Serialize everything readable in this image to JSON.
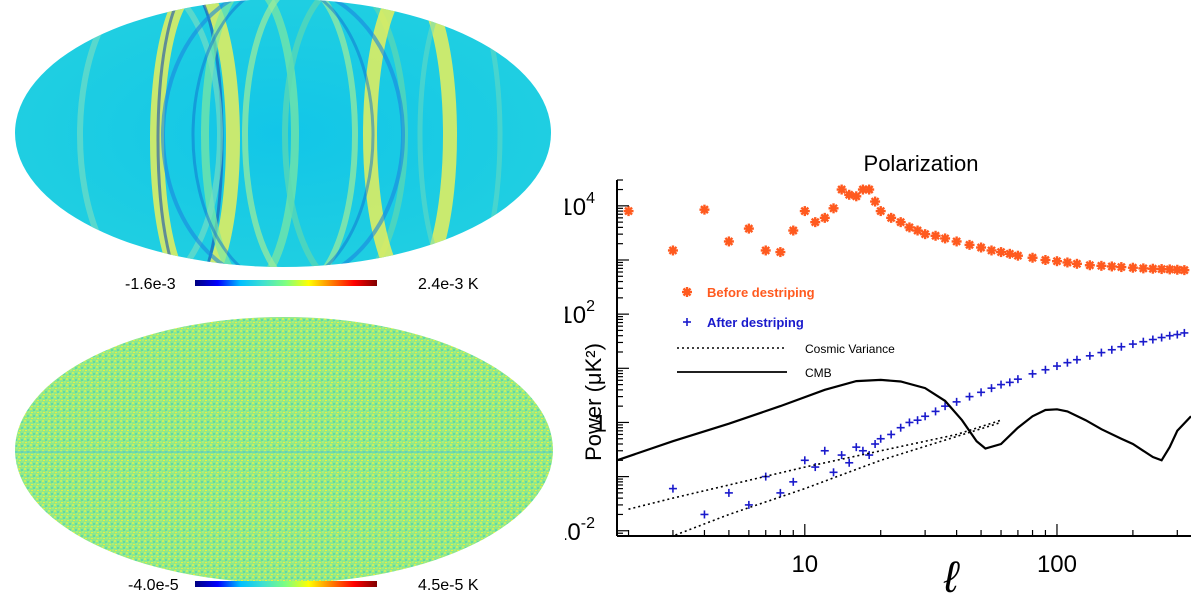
{
  "maps": [
    {
      "scale_min": "-1.6e-3",
      "scale_max": "2.4e-3 K"
    },
    {
      "scale_min": "-4.0e-5",
      "scale_max": "4.5e-5 K"
    }
  ],
  "colorbar_colors": [
    "#00007f",
    "#0000ff",
    "#00bfff",
    "#40e0d0",
    "#7fff7f",
    "#ffff00",
    "#ff7f00",
    "#ff0000",
    "#7f0000"
  ],
  "chart_data": {
    "type": "scatter",
    "title": "Polarization",
    "xlabel": "ℓ",
    "ylabel": "Power (μK²)",
    "xscale": "log",
    "yscale": "log",
    "xlim": [
      1.8,
      340
    ],
    "ylim": [
      0.008,
      30000
    ],
    "x_ticks": [
      {
        "value": 10,
        "label": "10"
      },
      {
        "value": 100,
        "label": "100"
      }
    ],
    "y_ticks": [
      {
        "value": 0.01,
        "base": "10",
        "exp": "-2"
      },
      {
        "value": 1,
        "base": "1",
        "exp": ""
      },
      {
        "value": 100,
        "base": "10",
        "exp": "2"
      },
      {
        "value": 10000,
        "base": "10",
        "exp": "4"
      }
    ],
    "legend_position": "left",
    "legend": [
      {
        "label": "Before destriping",
        "color": "#ff5a1f",
        "marker": "asterisk"
      },
      {
        "label": "After destriping",
        "color": "#1a1acc",
        "marker": "plus"
      },
      {
        "label": "Cosmic Variance",
        "color": "#000000",
        "marker": "dotted-line"
      },
      {
        "label": "CMB",
        "color": "#000000",
        "marker": "solid-line"
      }
    ],
    "series": [
      {
        "name": "Before destriping",
        "color": "#ff5a1f",
        "x": [
          2,
          3,
          4,
          5,
          6,
          7,
          8,
          9,
          10,
          11,
          12,
          13,
          14,
          15,
          16,
          17,
          18,
          19,
          20,
          22,
          24,
          26,
          28,
          30,
          33,
          36,
          40,
          45,
          50,
          55,
          60,
          65,
          70,
          80,
          90,
          100,
          110,
          120,
          135,
          150,
          165,
          180,
          200,
          220,
          240,
          260,
          280,
          300,
          320
        ],
        "y": [
          8000,
          1500,
          8500,
          2200,
          3800,
          1500,
          1400,
          3500,
          8000,
          5000,
          6000,
          9000,
          20000,
          16000,
          15000,
          20000,
          20000,
          12000,
          8000,
          6000,
          5000,
          4000,
          3500,
          3000,
          2800,
          2500,
          2200,
          1900,
          1700,
          1500,
          1400,
          1300,
          1200,
          1100,
          1000,
          950,
          900,
          850,
          800,
          780,
          760,
          740,
          720,
          700,
          690,
          680,
          670,
          660,
          650
        ]
      },
      {
        "name": "After destriping",
        "color": "#1a1acc",
        "x": [
          2,
          3,
          4,
          5,
          6,
          7,
          8,
          9,
          10,
          11,
          12,
          13,
          14,
          15,
          16,
          17,
          18,
          19,
          20,
          22,
          24,
          26,
          28,
          30,
          33,
          36,
          40,
          45,
          50,
          55,
          60,
          65,
          70,
          80,
          90,
          100,
          110,
          120,
          135,
          150,
          165,
          180,
          200,
          220,
          240,
          260,
          280,
          300,
          320
        ],
        "y": [
          0.006,
          0.06,
          0.02,
          0.05,
          0.03,
          0.1,
          0.05,
          0.08,
          0.2,
          0.15,
          0.3,
          0.12,
          0.25,
          0.18,
          0.35,
          0.3,
          0.25,
          0.4,
          0.5,
          0.6,
          0.8,
          1.0,
          1.1,
          1.3,
          1.6,
          2.0,
          2.4,
          3.0,
          3.6,
          4.3,
          5.0,
          5.5,
          6.3,
          7.9,
          9.4,
          11,
          12.7,
          14.4,
          17,
          19.5,
          22,
          25,
          28,
          31,
          34,
          37,
          40,
          42,
          45
        ]
      },
      {
        "name": "Cosmic Variance",
        "style": "dotted",
        "color": "#000000",
        "x": [
          2,
          3,
          5,
          10,
          20,
          40,
          60
        ],
        "y": [
          0.025,
          0.04,
          0.07,
          0.15,
          0.3,
          0.6,
          1.1
        ]
      },
      {
        "name": "Cosmic Variance",
        "style": "dotted",
        "color": "#000000",
        "x": [
          2,
          3,
          5,
          10,
          20,
          40,
          60
        ],
        "y": [
          0.004,
          0.008,
          0.02,
          0.06,
          0.2,
          0.55,
          1.0
        ]
      },
      {
        "name": "CMB",
        "style": "solid",
        "color": "#000000",
        "x": [
          1.8,
          3,
          5,
          8,
          12,
          16,
          20,
          24,
          30,
          36,
          42,
          48,
          52,
          60,
          70,
          80,
          90,
          100,
          110,
          130,
          150,
          180,
          200,
          220,
          240,
          260,
          280,
          300,
          340
        ],
        "y": [
          0.2,
          0.45,
          0.95,
          2.0,
          4.0,
          5.8,
          6.1,
          5.7,
          4.3,
          2.5,
          1.1,
          0.45,
          0.33,
          0.4,
          0.8,
          1.3,
          1.7,
          1.75,
          1.6,
          1.1,
          0.75,
          0.5,
          0.4,
          0.3,
          0.23,
          0.2,
          0.35,
          0.7,
          1.3
        ]
      }
    ]
  }
}
